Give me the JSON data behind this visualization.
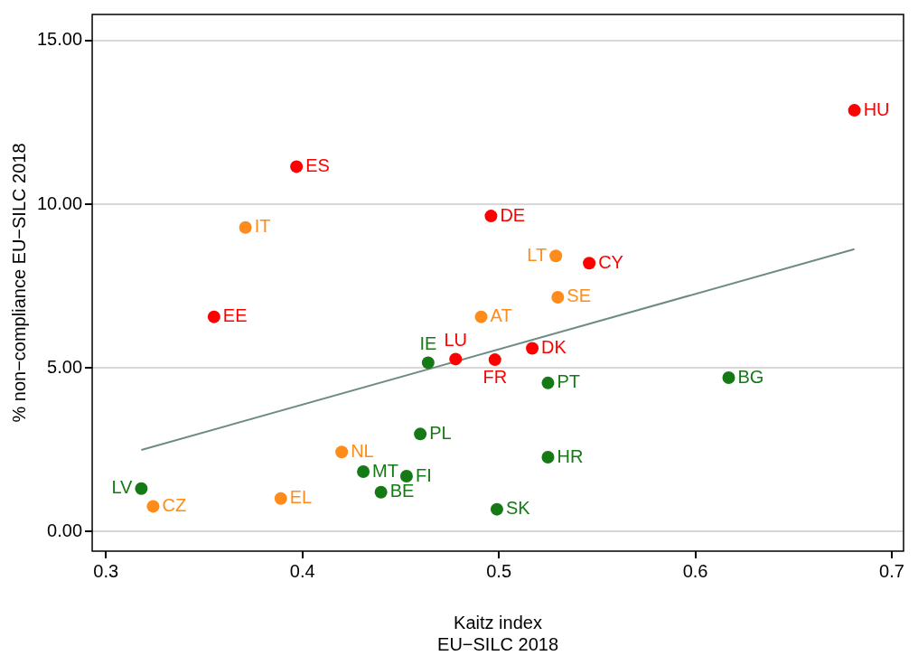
{
  "chart_data": {
    "type": "scatter",
    "xlabel": "Kaitz index\nEU−SILC 2018",
    "ylabel": "% non−compliance EU−SILC 2018",
    "xlim": [
      0.293,
      0.706
    ],
    "ylim": [
      -0.6,
      15.8
    ],
    "xticks": [
      0.3,
      0.4,
      0.5,
      0.6,
      0.7
    ],
    "yticks": [
      {
        "value": 0,
        "label": "0.00"
      },
      {
        "value": 5,
        "label": "5.00"
      },
      {
        "value": 10,
        "label": "10.00"
      },
      {
        "value": 15,
        "label": "15.00"
      }
    ],
    "grid": "y",
    "legend": false,
    "marker": "circle",
    "series": [
      {
        "color": "#ff0000",
        "x": [
          0.681,
          0.397,
          0.496,
          0.546,
          0.355,
          0.517,
          0.478,
          0.498
        ],
        "values": [
          12.87,
          11.15,
          9.64,
          8.2,
          6.56,
          5.6,
          5.27,
          5.25
        ],
        "value_labels": [
          "HU",
          "ES",
          "DE",
          "CY",
          "EE",
          "DK",
          "LU",
          "FR"
        ]
      },
      {
        "color": "#ff8c1a",
        "x": [
          0.371,
          0.529,
          0.53,
          0.491,
          0.42,
          0.389,
          0.324
        ],
        "values": [
          9.29,
          8.42,
          7.16,
          6.56,
          2.43,
          1.01,
          0.77
        ],
        "value_labels": [
          "IT",
          "LT",
          "SE",
          "AT",
          "NL",
          "EL",
          "CZ"
        ]
      },
      {
        "color": "#157a15",
        "x": [
          0.464,
          0.525,
          0.617,
          0.46,
          0.525,
          0.431,
          0.453,
          0.44,
          0.318,
          0.499
        ],
        "values": [
          5.16,
          4.54,
          4.7,
          2.98,
          2.27,
          1.83,
          1.69,
          1.2,
          1.31,
          0.68
        ],
        "value_labels": [
          "IE",
          "PT",
          "BG",
          "PL",
          "HR",
          "MT",
          "FI",
          "BE",
          "LV",
          "SK"
        ]
      },
      {
        "type": "line",
        "color": "#6e8b82",
        "marker": "none",
        "x": [
          0.318,
          0.681
        ],
        "values": [
          2.49,
          8.63
        ]
      }
    ]
  }
}
